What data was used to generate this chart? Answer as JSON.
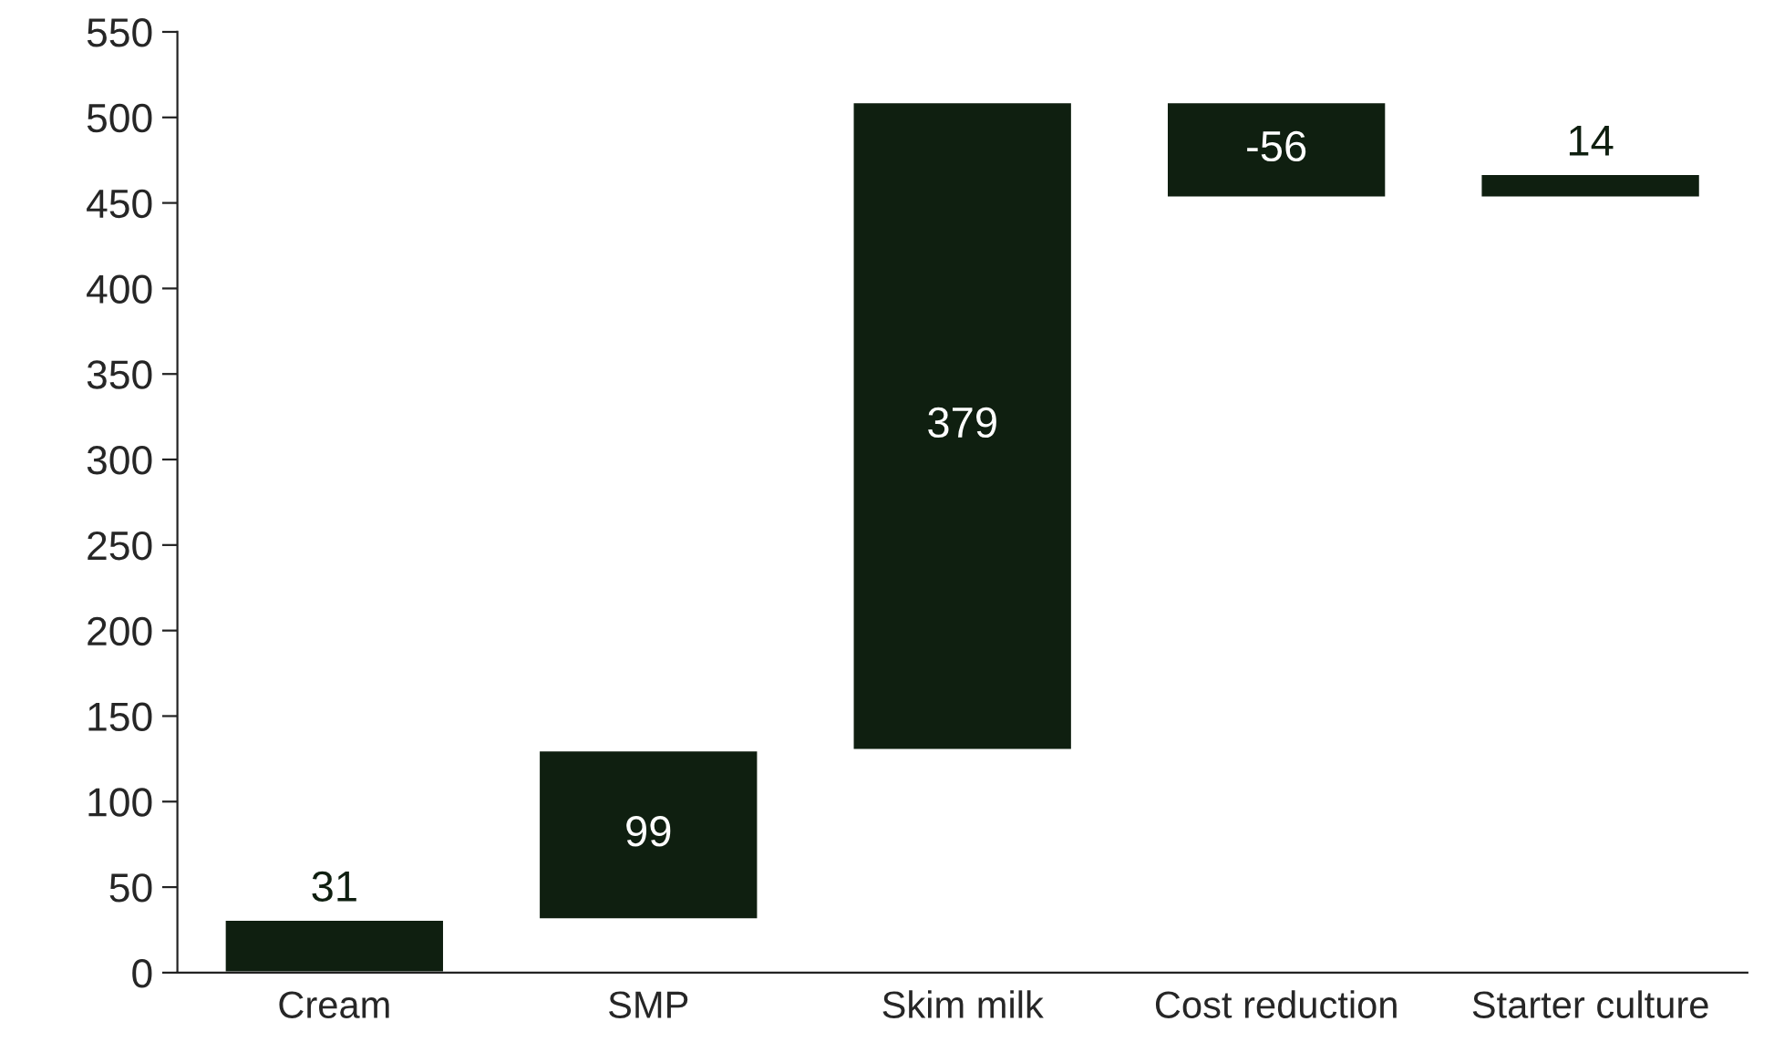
{
  "chart_data": {
    "type": "bar",
    "categories": [
      "Cream",
      "SMP",
      "Skim milk",
      "Cost reduction",
      "Starter culture"
    ],
    "values": [
      31,
      99,
      379,
      -56,
      14
    ],
    "base": [
      0,
      31,
      130,
      509,
      453
    ],
    "color": "#0f1f10",
    "ylim": [
      0,
      550
    ],
    "yticks": [
      0,
      50,
      100,
      150,
      200,
      250,
      300,
      350,
      400,
      450,
      500,
      550
    ],
    "data_labels": true,
    "grid": false,
    "legend": false
  }
}
